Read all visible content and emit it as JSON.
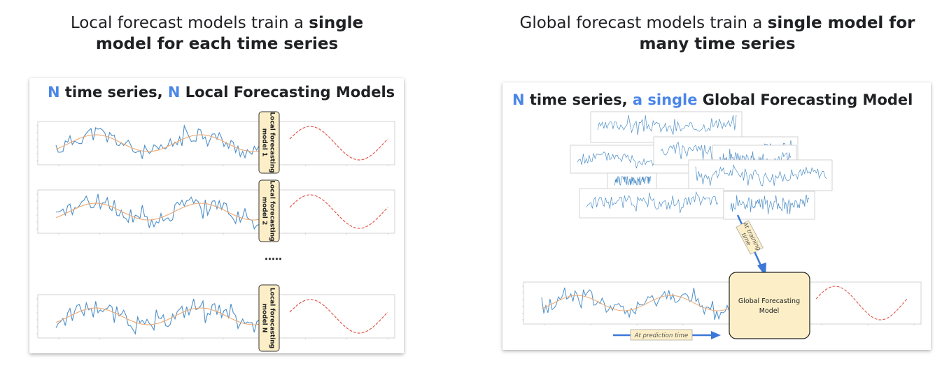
{
  "left": {
    "heading_line1_pre": "Local forecast models train a ",
    "heading_line1_bold": "single",
    "heading_line2_bold": "model for each time series",
    "title_n1": "N",
    "title_mid": " time series, ",
    "title_n2": "N",
    "title_end": " Local Forecasting Models",
    "models": [
      {
        "line1": "Local forecasting",
        "line2": "model 1"
      },
      {
        "line1": "Local forecasting",
        "line2": "model 2"
      },
      {
        "line1": "Local forecasting",
        "line2": "model N"
      }
    ],
    "ellipsis": "....."
  },
  "right": {
    "heading_line1_pre": "Global forecast models train a ",
    "heading_line1_bold": "single model for",
    "heading_line2_bold": "many time series",
    "title_n": "N",
    "title_mid": " time series, ",
    "title_single": "a single",
    "title_end": " Global Forecasting Model",
    "global_box_line1": "Global Forecasting",
    "global_box_line2": "Model",
    "training_tag_line1": "At training",
    "training_tag_line2": "time",
    "prediction_tag": "At prediction time"
  },
  "colors": {
    "accent": "#4a86e8",
    "series_line": "#4e8fc7",
    "trend_line": "#f0a870",
    "forecast_line": "#e05a4c",
    "model_box_fill": "#fcefc7",
    "arrow": "#3c78d8"
  },
  "icons": [
    "arrow-down-icon",
    "arrow-right-icon"
  ]
}
